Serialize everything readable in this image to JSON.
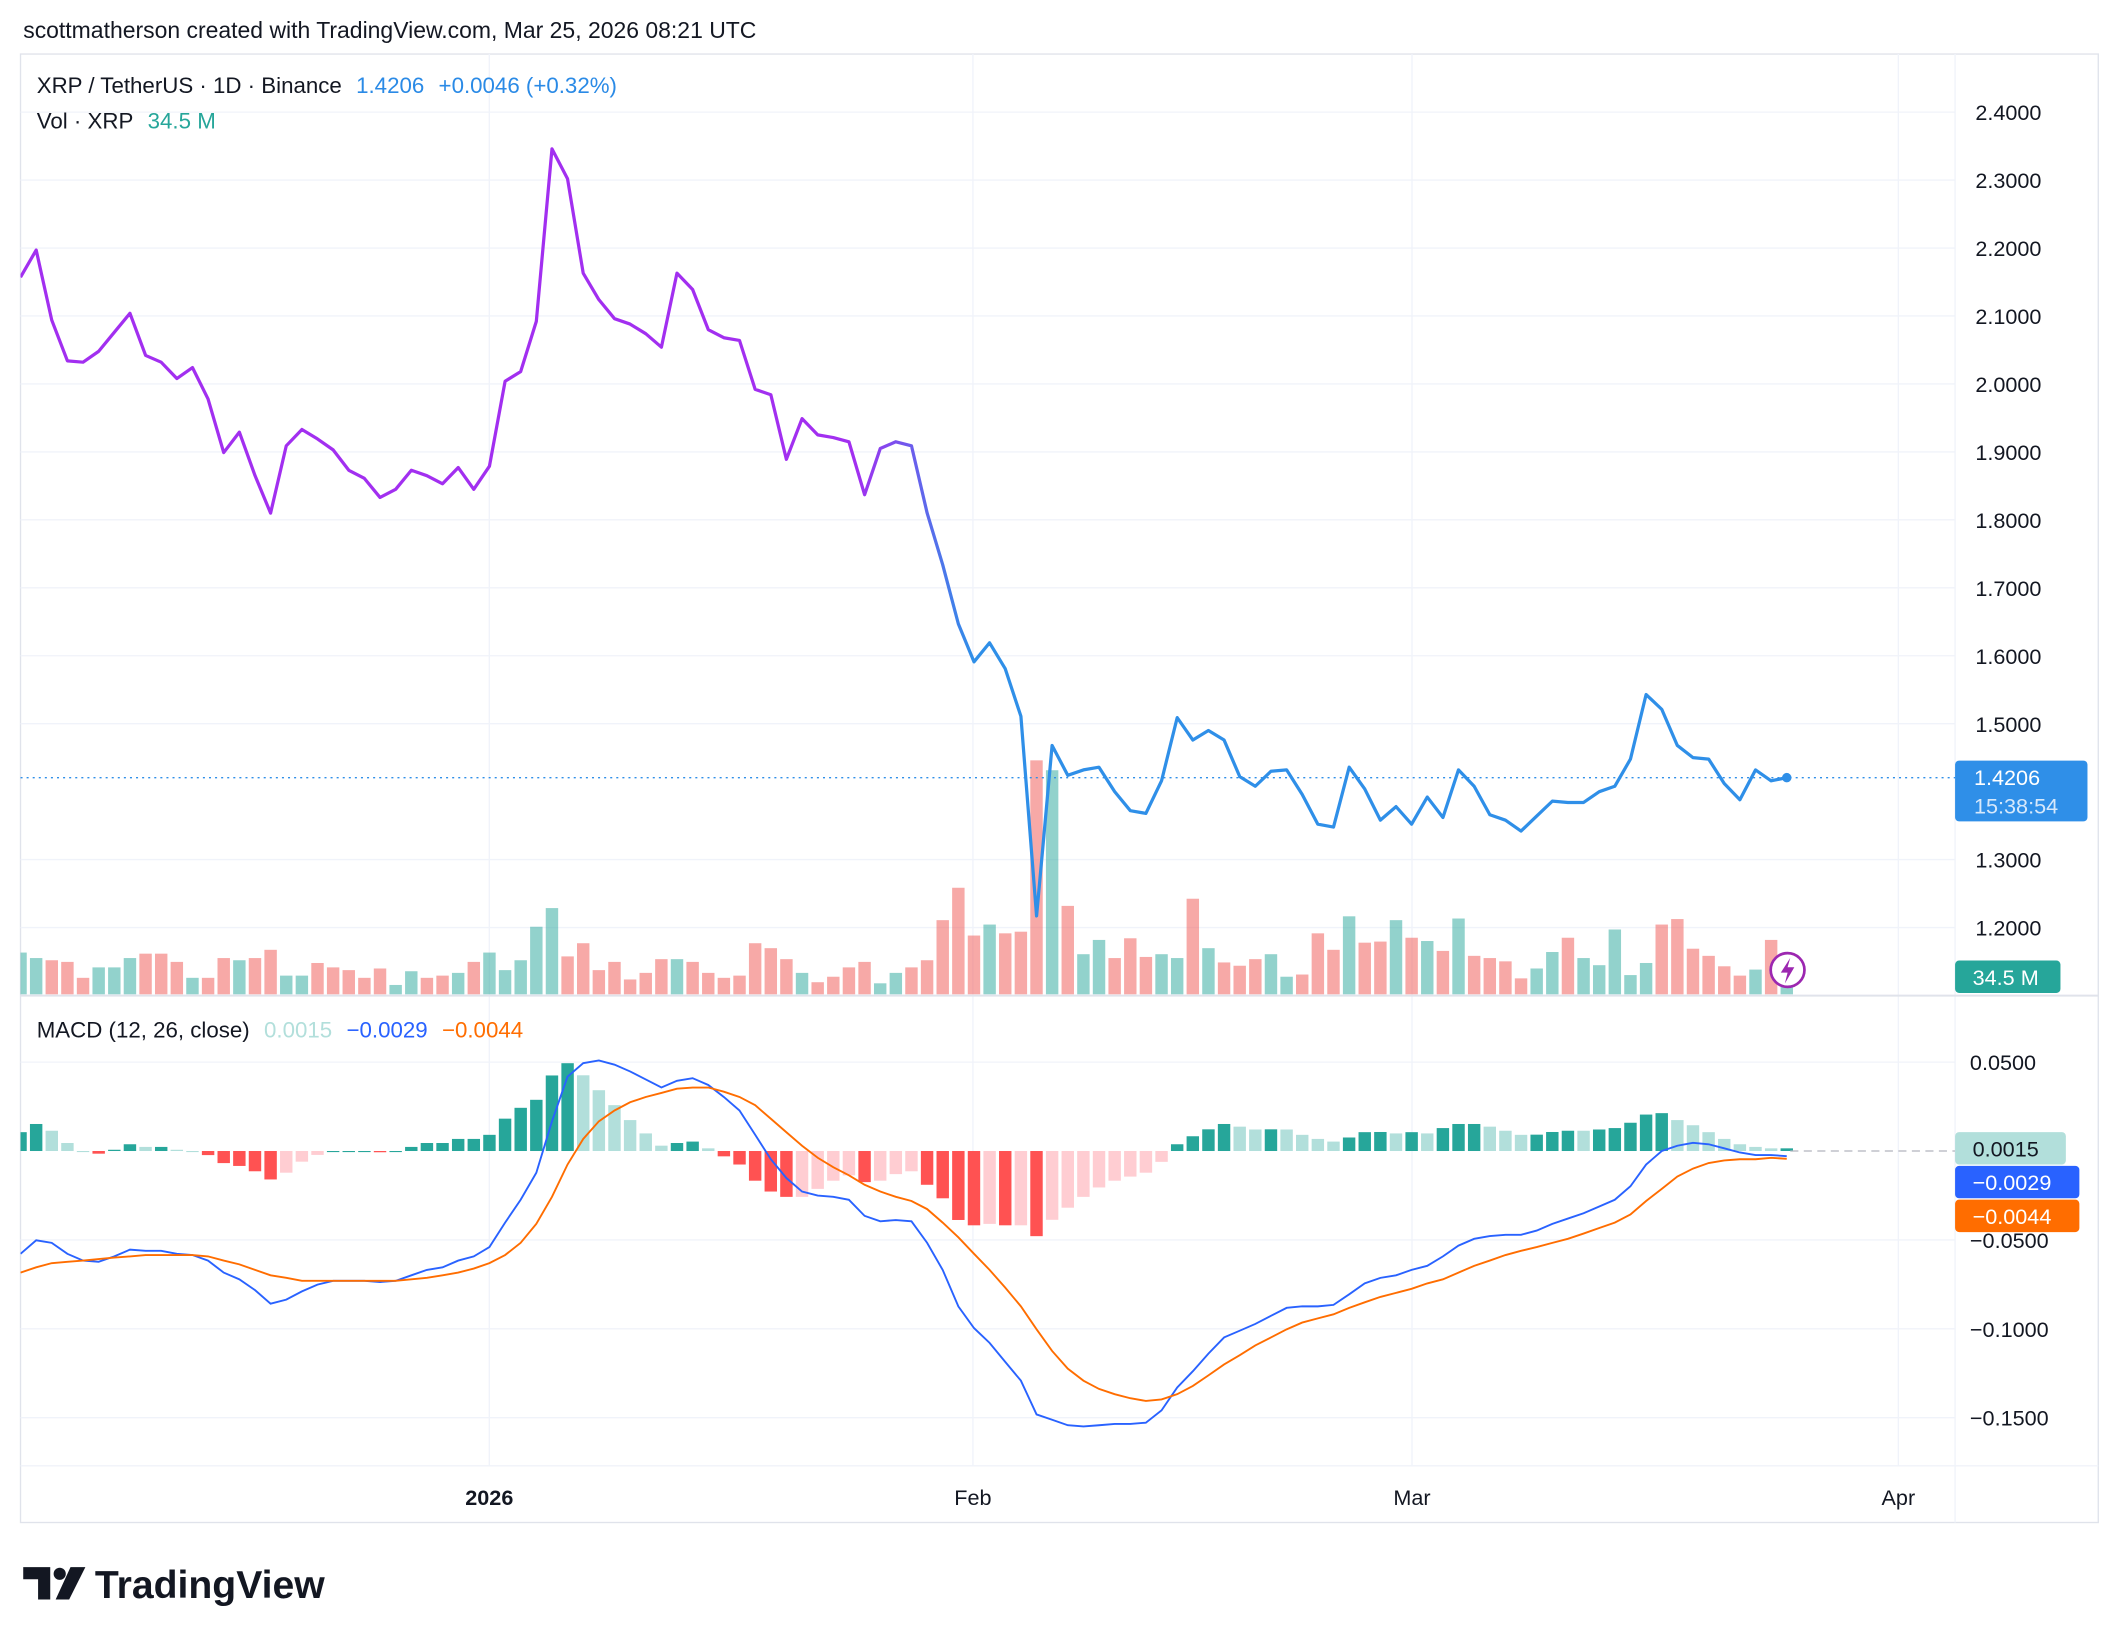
{
  "header": {
    "caption": "scottmatherson created with TradingView.com, Mar 25, 2026 08:21 UTC"
  },
  "legend": {
    "symbol": "XRP / TetherUS · 1D · Binance",
    "last": "1.4206",
    "change": "+0.0046 (+0.32%)",
    "vol_label": "Vol · XRP",
    "vol_value": "34.5 M",
    "macd_label": "MACD (12, 26, close)",
    "macd_hist": "0.0015",
    "macd_line": "−0.0029",
    "macd_signal": "−0.0044"
  },
  "price_axis": {
    "ticks": [
      "2.4000",
      "2.3000",
      "2.2000",
      "2.1000",
      "2.0000",
      "1.9000",
      "1.8000",
      "1.7000",
      "1.6000",
      "1.5000",
      "1.3000",
      "1.2000"
    ],
    "last_label": "1.4206",
    "countdown": "15:38:54",
    "vol_label": "34.5 M"
  },
  "macd_axis": {
    "ticks": [
      "0.0500",
      "−0.0500",
      "−0.1000",
      "−0.1500"
    ],
    "hist_label": "0.0015",
    "macd_label": "−0.0029",
    "signal_label": "−0.0044"
  },
  "time_axis": {
    "ticks": [
      "2026",
      "Feb",
      "Mar",
      "Apr"
    ]
  },
  "brand": {
    "logo_text": "TradingView"
  },
  "colors": {
    "up": "#26a69a",
    "down": "#ef5350",
    "price_early": "#a22ff0",
    "price_late": "#2f8fe8",
    "macd": "#2962ff",
    "signal": "#ff6d00",
    "hist_up_strong": "#26a69a",
    "hist_up_weak": "#b2dfdb",
    "hist_down_strong": "#ff5252",
    "hist_down_weak": "#ffcdd2"
  },
  "icons": {
    "alert": "lightning-icon",
    "logo": "tradingview-logo-icon"
  },
  "chart_data": {
    "type": "line",
    "symbol": "XRPUSDT",
    "interval": "1D",
    "ylim": [
      1.15,
      2.45
    ],
    "dates": [
      "2025-12-02",
      "2025-12-03",
      "2025-12-04",
      "2025-12-05",
      "2025-12-06",
      "2025-12-07",
      "2025-12-08",
      "2025-12-09",
      "2025-12-10",
      "2025-12-11",
      "2025-12-12",
      "2025-12-13",
      "2025-12-14",
      "2025-12-15",
      "2025-12-16",
      "2025-12-17",
      "2025-12-18",
      "2025-12-19",
      "2025-12-20",
      "2025-12-21",
      "2025-12-22",
      "2025-12-23",
      "2025-12-24",
      "2025-12-25",
      "2025-12-26",
      "2025-12-27",
      "2025-12-28",
      "2025-12-29",
      "2025-12-30",
      "2025-12-31",
      "2026-01-01",
      "2026-01-02",
      "2026-01-03",
      "2026-01-04",
      "2026-01-05",
      "2026-01-06",
      "2026-01-07",
      "2026-01-08",
      "2026-01-09",
      "2026-01-10",
      "2026-01-11",
      "2026-01-12",
      "2026-01-13",
      "2026-01-14",
      "2026-01-15",
      "2026-01-16",
      "2026-01-17",
      "2026-01-18",
      "2026-01-19",
      "2026-01-20",
      "2026-01-21",
      "2026-01-22",
      "2026-01-23",
      "2026-01-24",
      "2026-01-25",
      "2026-01-26",
      "2026-01-27",
      "2026-01-28",
      "2026-01-29",
      "2026-01-30",
      "2026-01-31",
      "2026-02-01",
      "2026-02-02",
      "2026-02-03",
      "2026-02-04",
      "2026-02-05",
      "2026-02-06",
      "2026-02-07",
      "2026-02-08",
      "2026-02-09",
      "2026-02-10",
      "2026-02-11",
      "2026-02-12",
      "2026-02-13",
      "2026-02-14",
      "2026-02-15",
      "2026-02-16",
      "2026-02-17",
      "2026-02-18",
      "2026-02-19",
      "2026-02-20",
      "2026-02-21",
      "2026-02-22",
      "2026-02-23",
      "2026-02-24",
      "2026-02-25",
      "2026-02-26",
      "2026-02-27",
      "2026-02-28",
      "2026-03-01",
      "2026-03-02",
      "2026-03-03",
      "2026-03-04",
      "2026-03-05",
      "2026-03-06",
      "2026-03-07",
      "2026-03-08",
      "2026-03-09",
      "2026-03-10",
      "2026-03-11",
      "2026-03-12",
      "2026-03-13",
      "2026-03-14",
      "2026-03-15",
      "2026-03-16",
      "2026-03-17",
      "2026-03-18",
      "2026-03-19",
      "2026-03-20",
      "2026-03-21",
      "2026-03-22",
      "2026-03-23",
      "2026-03-24",
      "2026-03-25"
    ],
    "close": [
      2.157,
      2.197,
      2.094,
      2.034,
      2.032,
      2.048,
      2.076,
      2.104,
      2.042,
      2.032,
      2.008,
      2.024,
      1.978,
      1.899,
      1.929,
      1.865,
      1.81,
      1.909,
      1.933,
      1.919,
      1.903,
      1.873,
      1.861,
      1.833,
      1.845,
      1.873,
      1.865,
      1.853,
      1.877,
      1.845,
      1.879,
      2.004,
      2.018,
      2.092,
      2.346,
      2.302,
      2.163,
      2.124,
      2.096,
      2.088,
      2.074,
      2.054,
      2.163,
      2.139,
      2.08,
      2.068,
      2.064,
      1.992,
      1.984,
      1.889,
      1.949,
      1.925,
      1.921,
      1.915,
      1.837,
      1.905,
      1.915,
      1.909,
      1.81,
      1.734,
      1.647,
      1.591,
      1.619,
      1.581,
      1.511,
      1.217,
      1.468,
      1.424,
      1.432,
      1.436,
      1.4,
      1.372,
      1.368,
      1.416,
      1.509,
      1.476,
      1.49,
      1.476,
      1.422,
      1.408,
      1.43,
      1.432,
      1.396,
      1.352,
      1.348,
      1.436,
      1.404,
      1.358,
      1.378,
      1.352,
      1.392,
      1.362,
      1.432,
      1.408,
      1.366,
      1.358,
      1.342,
      1.364,
      1.386,
      1.384,
      1.384,
      1.4,
      1.408,
      1.448,
      1.543,
      1.521,
      1.468,
      1.45,
      1.448,
      1.412,
      1.388,
      1.432,
      1.416,
      1.4206
    ],
    "volume_millions": [
      76,
      66,
      62,
      59,
      30,
      49,
      49,
      66,
      74,
      74,
      59,
      30,
      30,
      66,
      62,
      66,
      81,
      34,
      34,
      57,
      49,
      44,
      30,
      47,
      17,
      42,
      30,
      34,
      39,
      59,
      76,
      44,
      62,
      123,
      157,
      69,
      93,
      44,
      59,
      27,
      39,
      64,
      64,
      59,
      39,
      30,
      34,
      93,
      84,
      64,
      39,
      22,
      32,
      49,
      59,
      20,
      39,
      49,
      62,
      135,
      194,
      107,
      127,
      111,
      114,
      426,
      408,
      161,
      73,
      99,
      66,
      102,
      68,
      73,
      66,
      174,
      84,
      58,
      52,
      64,
      73,
      32,
      36,
      111,
      81,
      142,
      94,
      96,
      135,
      103,
      97,
      79,
      138,
      70,
      66,
      60,
      29,
      47,
      77,
      103,
      66,
      53,
      118,
      35,
      57,
      127,
      137,
      83,
      70,
      51,
      34,
      45,
      99,
      34.5
    ],
    "macd": [
      -0.0578,
      -0.0502,
      -0.0517,
      -0.0578,
      -0.0616,
      -0.0623,
      -0.0593,
      -0.0555,
      -0.0562,
      -0.0562,
      -0.0578,
      -0.0585,
      -0.0616,
      -0.0684,
      -0.0722,
      -0.0783,
      -0.0859,
      -0.0836,
      -0.079,
      -0.0752,
      -0.073,
      -0.073,
      -0.073,
      -0.0737,
      -0.073,
      -0.0699,
      -0.0669,
      -0.0654,
      -0.0616,
      -0.0593,
      -0.054,
      -0.0403,
      -0.0274,
      -0.0122,
      0.0167,
      0.0418,
      0.0494,
      0.0509,
      0.0486,
      0.0448,
      0.0403,
      0.0357,
      0.0395,
      0.041,
      0.0372,
      0.0304,
      0.0228,
      0.0091,
      -0.0046,
      -0.0152,
      -0.0228,
      -0.0251,
      -0.0258,
      -0.0274,
      -0.0365,
      -0.0395,
      -0.0388,
      -0.0395,
      -0.0517,
      -0.0669,
      -0.0874,
      -0.0996,
      -0.1079,
      -0.1186,
      -0.1292,
      -0.1482,
      -0.1512,
      -0.1543,
      -0.155,
      -0.1543,
      -0.1535,
      -0.1535,
      -0.1528,
      -0.1459,
      -0.133,
      -0.1239,
      -0.114,
      -0.1049,
      -0.1011,
      -0.0973,
      -0.0927,
      -0.0882,
      -0.0874,
      -0.0874,
      -0.0866,
      -0.0806,
      -0.0745,
      -0.0714,
      -0.0699,
      -0.0669,
      -0.0646,
      -0.0593,
      -0.0532,
      -0.0494,
      -0.0479,
      -0.0471,
      -0.0471,
      -0.0448,
      -0.041,
      -0.038,
      -0.035,
      -0.0312,
      -0.0274,
      -0.0198,
      -0.0076,
      0.0,
      0.003,
      0.0046,
      0.0038,
      0.0015,
      -0.0008,
      -0.0023,
      -0.0023,
      -0.0029
    ],
    "signal": [
      -0.0684,
      -0.0654,
      -0.0631,
      -0.0623,
      -0.0616,
      -0.0608,
      -0.06,
      -0.0593,
      -0.0585,
      -0.0585,
      -0.0585,
      -0.0585,
      -0.0593,
      -0.0616,
      -0.0638,
      -0.0669,
      -0.0699,
      -0.0714,
      -0.073,
      -0.073,
      -0.073,
      -0.073,
      -0.073,
      -0.073,
      -0.073,
      -0.0722,
      -0.0714,
      -0.0699,
      -0.0684,
      -0.0661,
      -0.0631,
      -0.0585,
      -0.0517,
      -0.041,
      -0.0258,
      -0.0076,
      0.0068,
      0.0167,
      0.0228,
      0.0274,
      0.0304,
      0.0327,
      0.035,
      0.0357,
      0.0357,
      0.0334,
      0.0304,
      0.0258,
      0.0182,
      0.0106,
      0.003,
      -0.0038,
      -0.0091,
      -0.0137,
      -0.019,
      -0.0228,
      -0.0258,
      -0.0281,
      -0.0327,
      -0.0403,
      -0.0486,
      -0.0578,
      -0.0669,
      -0.0768,
      -0.0874,
      -0.1003,
      -0.1125,
      -0.1224,
      -0.1292,
      -0.1338,
      -0.1368,
      -0.1391,
      -0.1406,
      -0.1398,
      -0.1368,
      -0.1322,
      -0.1262,
      -0.1201,
      -0.1148,
      -0.1094,
      -0.1049,
      -0.1003,
      -0.0965,
      -0.0942,
      -0.0919,
      -0.0882,
      -0.0851,
      -0.0821,
      -0.0798,
      -0.0775,
      -0.0745,
      -0.0722,
      -0.0684,
      -0.0646,
      -0.0616,
      -0.0585,
      -0.0562,
      -0.054,
      -0.0517,
      -0.0494,
      -0.0464,
      -0.0433,
      -0.0403,
      -0.0357,
      -0.0281,
      -0.0213,
      -0.0144,
      -0.0099,
      -0.0068,
      -0.0053,
      -0.0046,
      -0.0046,
      -0.0038,
      -0.0044
    ],
    "macd_ylim": [
      -0.17,
      0.065
    ],
    "grid": true
  }
}
